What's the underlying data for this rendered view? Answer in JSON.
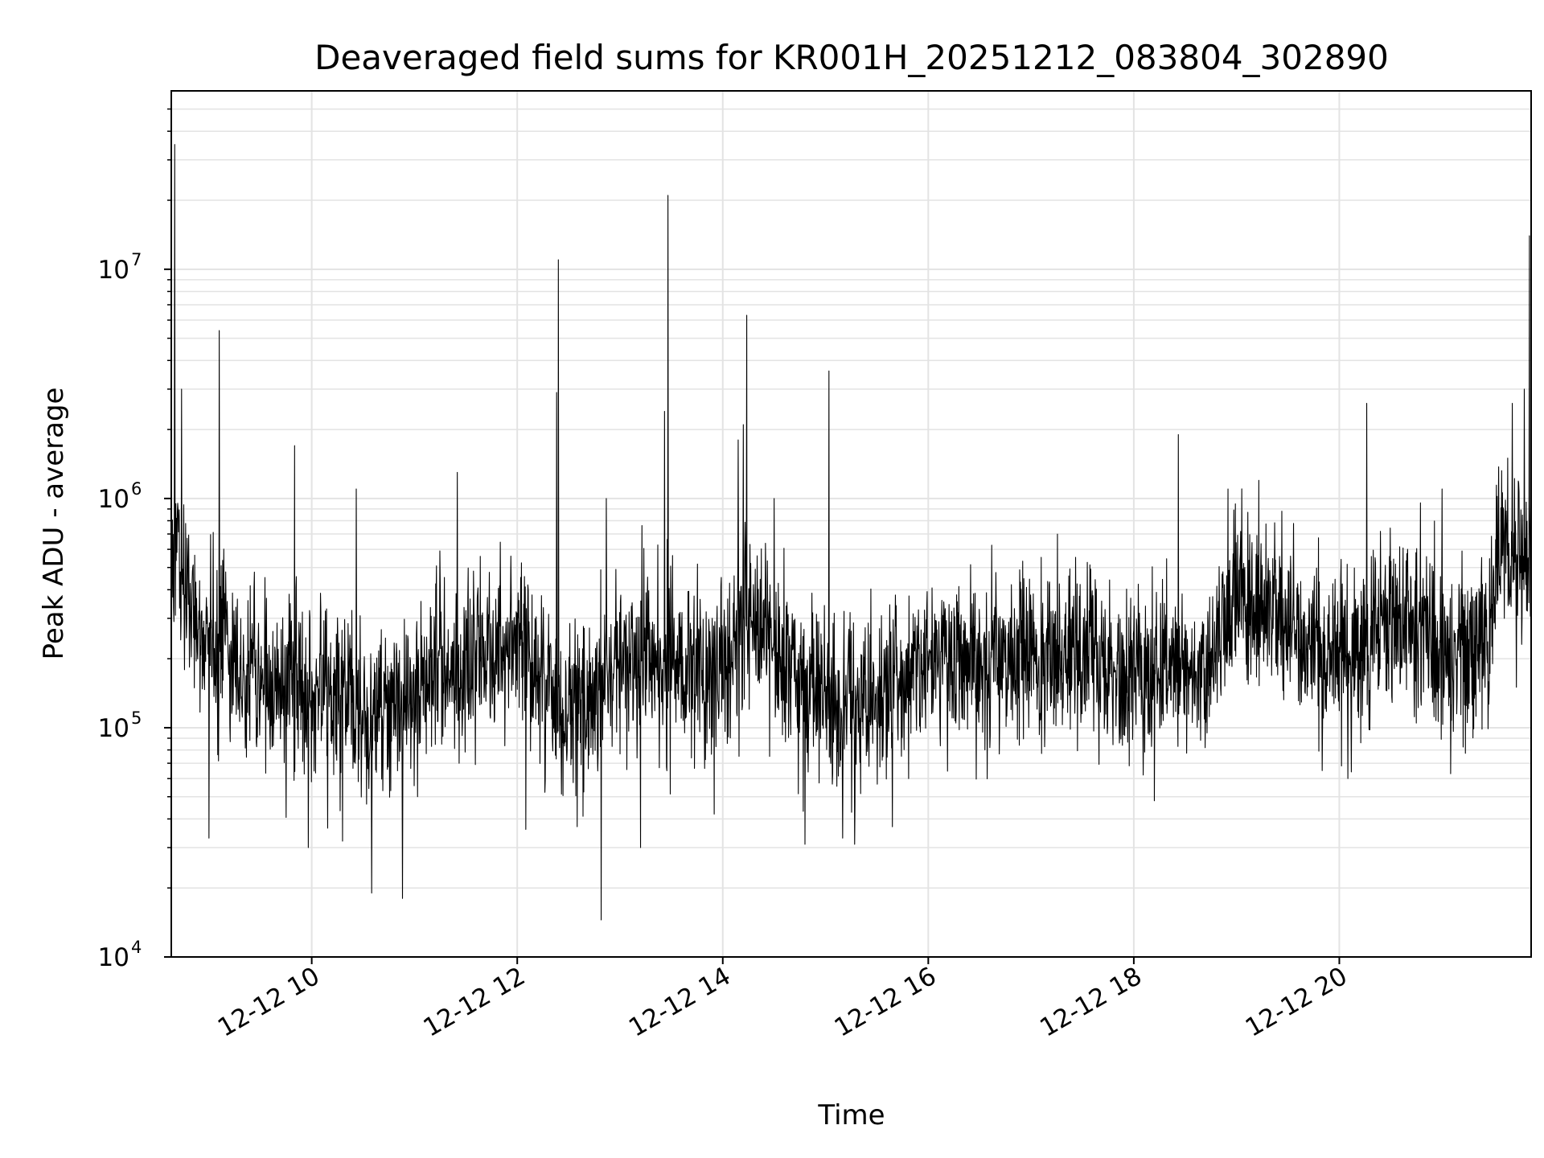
{
  "chart_data": {
    "type": "line",
    "title": "Deaveraged field sums for KR001H_20251212_083804_302890",
    "xlabel": "Time",
    "ylabel": "Peak ADU - average",
    "xscale": "time",
    "yscale": "log",
    "xlim": [
      "2025-12-12T08:38",
      "2025-12-12T21:52"
    ],
    "ylim": [
      10000,
      60000000
    ],
    "grid": true,
    "legend": "none",
    "line_color": "#000000",
    "x_ticks": [
      {
        "value": "2025-12-12T10:00",
        "label": "12-12 10"
      },
      {
        "value": "2025-12-12T12:00",
        "label": "12-12 12"
      },
      {
        "value": "2025-12-12T14:00",
        "label": "12-12 14"
      },
      {
        "value": "2025-12-12T16:00",
        "label": "12-12 16"
      },
      {
        "value": "2025-12-12T18:00",
        "label": "12-12 18"
      },
      {
        "value": "2025-12-12T20:00",
        "label": "12-12 20"
      }
    ],
    "y_ticks": [
      {
        "value": 10000,
        "base": "10",
        "exp": "4"
      },
      {
        "value": 100000,
        "base": "10",
        "exp": "5"
      },
      {
        "value": 1000000,
        "base": "10",
        "exp": "6"
      },
      {
        "value": 10000000,
        "base": "10",
        "exp": "7"
      }
    ],
    "baseline": [
      {
        "t": "08:38",
        "v": 600000
      },
      {
        "t": "08:50",
        "v": 320000
      },
      {
        "t": "09:15",
        "v": 170000
      },
      {
        "t": "10:00",
        "v": 140000
      },
      {
        "t": "10:45",
        "v": 120000
      },
      {
        "t": "11:30",
        "v": 200000
      },
      {
        "t": "12:00",
        "v": 230000
      },
      {
        "t": "12:30",
        "v": 110000
      },
      {
        "t": "13:00",
        "v": 180000
      },
      {
        "t": "13:30",
        "v": 190000
      },
      {
        "t": "14:00",
        "v": 170000
      },
      {
        "t": "14:15",
        "v": 300000
      },
      {
        "t": "14:45",
        "v": 160000
      },
      {
        "t": "15:15",
        "v": 120000
      },
      {
        "t": "15:30",
        "v": 130000
      },
      {
        "t": "16:00",
        "v": 200000
      },
      {
        "t": "17:00",
        "v": 200000
      },
      {
        "t": "18:00",
        "v": 180000
      },
      {
        "t": "18:45",
        "v": 180000
      },
      {
        "t": "19:00",
        "v": 350000
      },
      {
        "t": "19:30",
        "v": 320000
      },
      {
        "t": "19:45",
        "v": 200000
      },
      {
        "t": "20:15",
        "v": 210000
      },
      {
        "t": "20:30",
        "v": 340000
      },
      {
        "t": "21:00",
        "v": 210000
      },
      {
        "t": "21:25",
        "v": 220000
      },
      {
        "t": "21:35",
        "v": 650000
      },
      {
        "t": "21:52",
        "v": 550000
      }
    ],
    "spikes": [
      {
        "t": "08:40",
        "v": 35000000
      },
      {
        "t": "08:44",
        "v": 3000000
      },
      {
        "t": "09:06",
        "v": 5400000
      },
      {
        "t": "09:50",
        "v": 1700000
      },
      {
        "t": "10:26",
        "v": 1100000
      },
      {
        "t": "11:25",
        "v": 1300000
      },
      {
        "t": "12:24",
        "v": 11000000
      },
      {
        "t": "12:23",
        "v": 2900000
      },
      {
        "t": "12:52",
        "v": 1000000
      },
      {
        "t": "13:26",
        "v": 2400000
      },
      {
        "t": "13:28",
        "v": 21000000
      },
      {
        "t": "14:09",
        "v": 1800000
      },
      {
        "t": "14:12",
        "v": 2100000
      },
      {
        "t": "14:14",
        "v": 6300000
      },
      {
        "t": "14:30",
        "v": 1000000
      },
      {
        "t": "15:02",
        "v": 3600000
      },
      {
        "t": "18:26",
        "v": 1900000
      },
      {
        "t": "18:55",
        "v": 1100000
      },
      {
        "t": "19:13",
        "v": 1200000
      },
      {
        "t": "20:16",
        "v": 2600000
      },
      {
        "t": "21:00",
        "v": 1100000
      },
      {
        "t": "21:41",
        "v": 2600000
      },
      {
        "t": "21:48",
        "v": 3000000
      },
      {
        "t": "21:51",
        "v": 14000000
      }
    ],
    "dips": [
      {
        "t": "09:00",
        "v": 33000
      },
      {
        "t": "09:58",
        "v": 30000
      },
      {
        "t": "10:18",
        "v": 32000
      },
      {
        "t": "10:35",
        "v": 19000
      },
      {
        "t": "10:53",
        "v": 18000
      },
      {
        "t": "12:05",
        "v": 36000
      },
      {
        "t": "12:35",
        "v": 37000
      },
      {
        "t": "12:49",
        "v": 14500
      },
      {
        "t": "13:12",
        "v": 30000
      },
      {
        "t": "13:55",
        "v": 42000
      },
      {
        "t": "14:48",
        "v": 31000
      },
      {
        "t": "15:10",
        "v": 33000
      },
      {
        "t": "15:17",
        "v": 31000
      },
      {
        "t": "18:12",
        "v": 48000
      },
      {
        "t": "19:50",
        "v": 65000
      },
      {
        "t": "20:05",
        "v": 60000
      },
      {
        "t": "21:05",
        "v": 63000
      }
    ]
  }
}
